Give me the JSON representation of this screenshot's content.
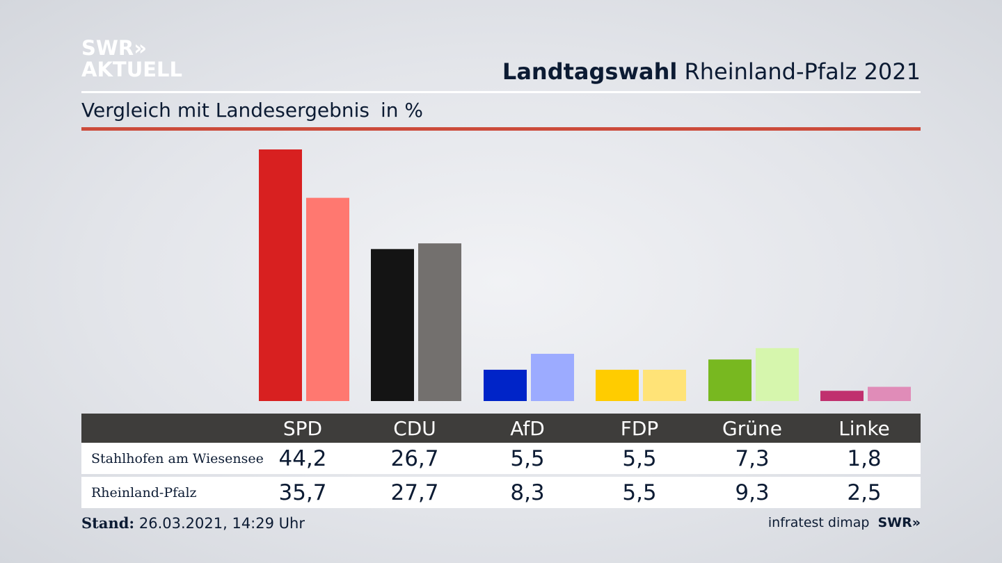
{
  "logo": {
    "line1": "SWR»",
    "line2": "AKTUELL"
  },
  "header": {
    "title_bold": "Landtagswahl",
    "title_rest": "Rheinland-Pfalz 2021",
    "subtitle": "Vergleich mit Landesergebnis",
    "unit": "in %"
  },
  "table": {
    "row1_label": "Stahlhofen am Wiesensee",
    "row2_label": "Rheinland-Pfalz",
    "parties": [
      "SPD",
      "CDU",
      "AfD",
      "FDP",
      "Grüne",
      "Linke"
    ],
    "row1_values": [
      "44,2",
      "26,7",
      "5,5",
      "5,5",
      "7,3",
      "1,8"
    ],
    "row2_values": [
      "35,7",
      "27,7",
      "8,3",
      "5,5",
      "9,3",
      "2,5"
    ]
  },
  "footer": {
    "stand_label": "Stand:",
    "stand_value": "26.03.2021, 14:29 Uhr",
    "source": "infratest dimap",
    "source_logo": "SWR»"
  },
  "chart_data": {
    "type": "bar",
    "categories": [
      "SPD",
      "CDU",
      "AfD",
      "FDP",
      "Grüne",
      "Linke"
    ],
    "series": [
      {
        "name": "Stahlhofen am Wiesensee",
        "values": [
          44.2,
          26.7,
          5.5,
          5.5,
          7.3,
          1.8
        ]
      },
      {
        "name": "Rheinland-Pfalz",
        "values": [
          35.7,
          27.7,
          8.3,
          5.5,
          9.3,
          2.5
        ]
      }
    ],
    "colors": {
      "local": [
        "#d82020",
        "#141414",
        "#0024c8",
        "#ffcc00",
        "#78b820",
        "#c0306e"
      ],
      "state": [
        "#ff7870",
        "#73706e",
        "#9cabff",
        "#ffe377",
        "#d6f6ad",
        "#e08cb8"
      ]
    },
    "ylim": [
      0,
      44.2
    ],
    "grid": false
  }
}
